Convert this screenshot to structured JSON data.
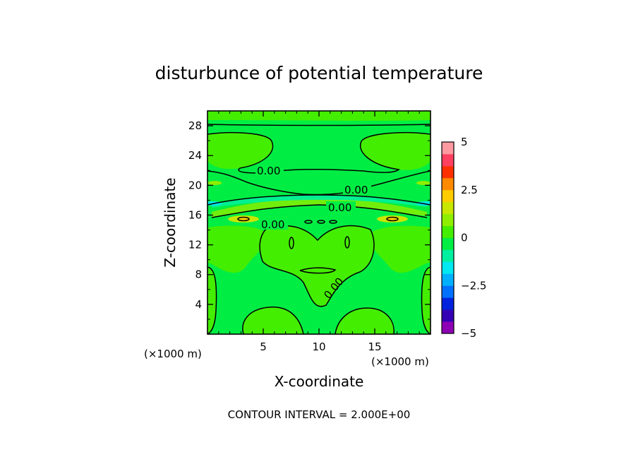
{
  "chart_data": {
    "type": "heatmap",
    "title": "disturbunce of potential temperature",
    "xlabel": "X-coordinate",
    "ylabel": "Z-coordinate",
    "x_unit_label": "(×1000 m)",
    "z_unit_label": "(×1000 m)",
    "xlim": [
      0,
      20
    ],
    "ylim": [
      0,
      30
    ],
    "xticks": [
      5,
      10,
      15
    ],
    "yticks": [
      4,
      8,
      12,
      16,
      20,
      24,
      28
    ],
    "contour_labels": [
      "0.00",
      "0.00",
      "0.00",
      "0.00",
      "0.00"
    ],
    "contour_interval_text": "CONTOUR INTERVAL = 2.000E+00",
    "colorbar": {
      "range": [
        -5,
        5
      ],
      "tick_labels": [
        "5",
        "2.5",
        "0",
        "−2.5",
        "−5"
      ],
      "tick_values": [
        5,
        2.5,
        0,
        -2.5,
        -5
      ],
      "colors": [
        "#8e00b4",
        "#3400b4",
        "#0022dd",
        "#0070ff",
        "#00b0ff",
        "#00e8f0",
        "#00f0a0",
        "#00ee44",
        "#44ee00",
        "#8fee00",
        "#c8e600",
        "#ffcc00",
        "#ff8a00",
        "#ff3000",
        "#ff4060",
        "#ff9aa0"
      ]
    }
  }
}
